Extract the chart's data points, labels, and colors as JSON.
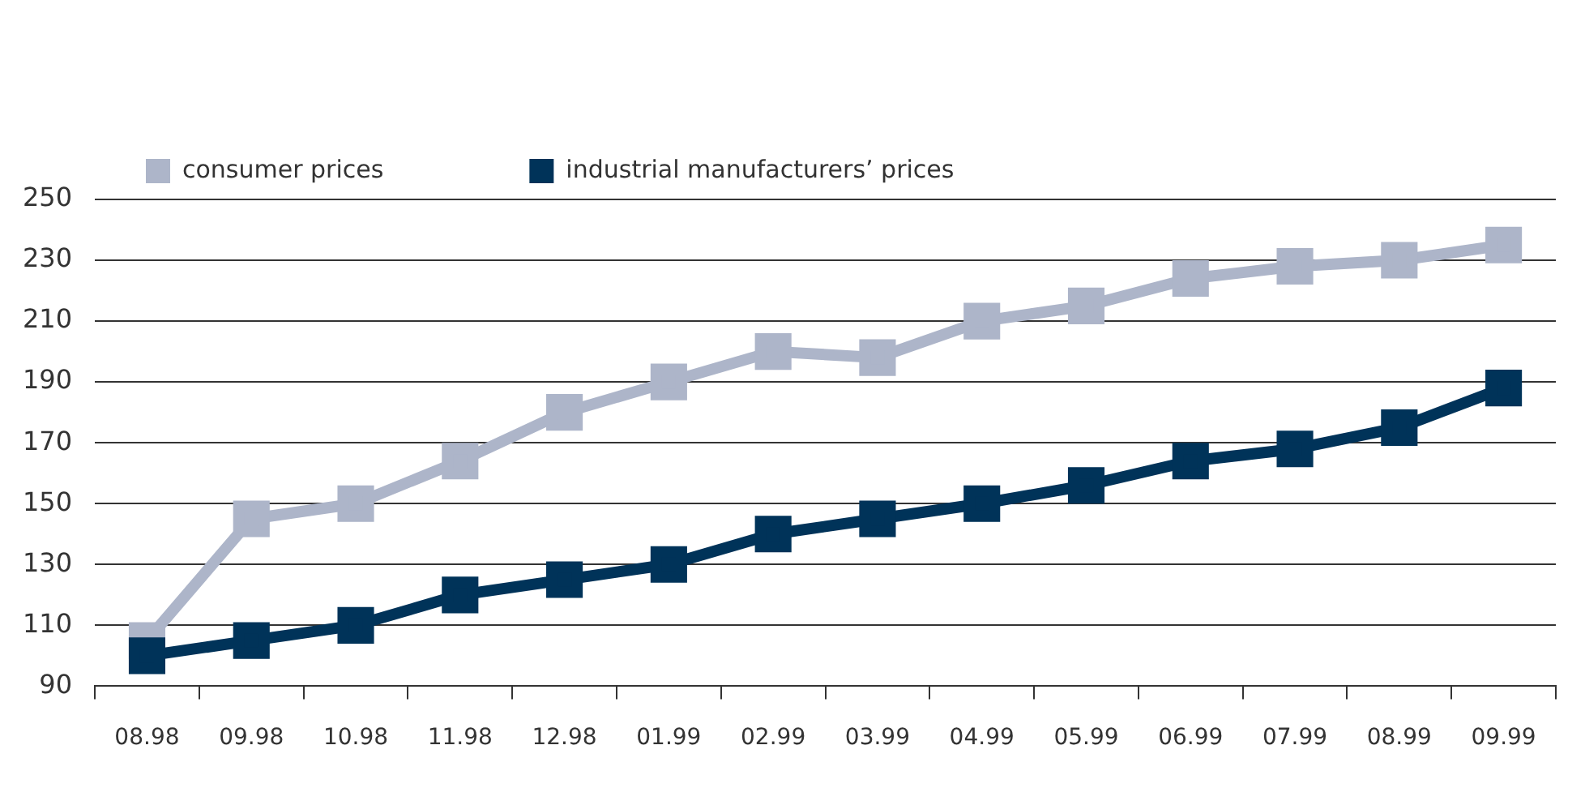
{
  "chart_data": {
    "type": "line",
    "categories": [
      "08.98",
      "09.98",
      "10.98",
      "11.98",
      "12.98",
      "01.99",
      "02.99",
      "03.99",
      "04.99",
      "05.99",
      "06.99",
      "07.99",
      "08.99",
      "09.99"
    ],
    "series": [
      {
        "name": "consumer prices",
        "color": "#adb5c9",
        "values": [
          105,
          145,
          150,
          164,
          180,
          190,
          200,
          198,
          210,
          215,
          224,
          228,
          230,
          235
        ]
      },
      {
        "name": "industrial manufacturers’ prices",
        "color": "#003359",
        "values": [
          100,
          105,
          110,
          120,
          125,
          130,
          140,
          145,
          150,
          156,
          164,
          168,
          175,
          188
        ]
      }
    ],
    "ylim": [
      90,
      250
    ],
    "yticks": [
      90,
      110,
      130,
      150,
      170,
      190,
      210,
      230,
      250
    ],
    "grid": "y",
    "legend": "top left",
    "marker": "square",
    "line_style": "solid"
  }
}
